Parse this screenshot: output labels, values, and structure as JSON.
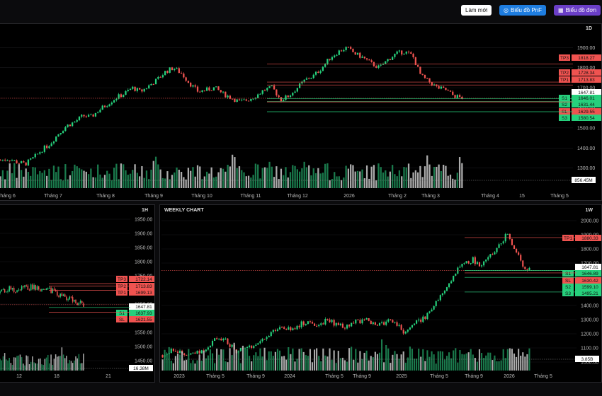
{
  "toolbar": {
    "refresh_label": "Làm mới",
    "pnf_label": "Biểu đồ PnF",
    "single_label": "Biểu đồ đơn",
    "pnf_icon": "target-icon",
    "single_icon": "calendar-icon"
  },
  "colors": {
    "up": "#26d07c",
    "down": "#ef5350",
    "tp": "#ef5350",
    "support": "#26d07c",
    "current": "#ffffff",
    "bg": "#000000"
  },
  "daily": {
    "timeframe": "1D",
    "y_ticks": [
      "1900.00",
      "1800.00",
      "1700.00",
      "1600.00",
      "1500.00",
      "1400.00",
      "1300.00"
    ],
    "x_ticks": [
      "Tháng 6",
      "Tháng 7",
      "Tháng 8",
      "Tháng 9",
      "Tháng 10",
      "Tháng 11",
      "Tháng 12",
      "2026",
      "Tháng 2",
      "Tháng 3",
      "Tháng 4",
      "15",
      "Tháng 5"
    ],
    "levels": [
      {
        "label": "TP3",
        "value": "1818.27",
        "type": "tp"
      },
      {
        "label": "TP2",
        "value": "1728.34",
        "type": "tp"
      },
      {
        "label": "TP1",
        "value": "1713.83",
        "type": "tp"
      },
      {
        "label": "",
        "value": "1647.81",
        "type": "current"
      },
      {
        "label": "S1",
        "value": "1646.01",
        "type": "support"
      },
      {
        "label": "S2",
        "value": "1631.44",
        "type": "support"
      },
      {
        "label": "SL",
        "value": "1629.55",
        "type": "sl"
      },
      {
        "label": "S3",
        "value": "1580.54",
        "type": "support"
      }
    ],
    "volume_label": "856.45M"
  },
  "hourly": {
    "timeframe": "1H",
    "y_ticks": [
      "1950.00",
      "1900.00",
      "1850.00",
      "1800.00",
      "1750.00",
      "1650.00",
      "1600.00",
      "1550.00",
      "1500.00",
      "1450.00"
    ],
    "x_ticks": [
      "12",
      "18",
      "21"
    ],
    "levels": [
      {
        "label": "TP3",
        "value": "1722.14",
        "type": "tp"
      },
      {
        "label": "TP2",
        "value": "1713.83",
        "type": "tp"
      },
      {
        "label": "TP1",
        "value": "1699.13",
        "type": "tp"
      },
      {
        "label": "",
        "value": "1647.81",
        "type": "current"
      },
      {
        "label": "S1",
        "value": "1637.93",
        "type": "support"
      },
      {
        "label": "SL",
        "value": "1621.55",
        "type": "sl"
      }
    ],
    "volume_label": "16.38M"
  },
  "weekly": {
    "title": "WEEKLY CHART",
    "timeframe": "1W",
    "y_ticks": [
      "2000.00",
      "1900.00",
      "1800.00",
      "1700.00",
      "1500.00",
      "1400.00",
      "1300.00",
      "1200.00",
      "1100.00",
      "1000.00"
    ],
    "x_ticks": [
      "2023",
      "Tháng 5",
      "Tháng 9",
      "2024",
      "Tháng 5",
      "Tháng 9",
      "2025",
      "Tháng 5",
      "Tháng 9",
      "2026",
      "Tháng 5"
    ],
    "levels": [
      {
        "label": "TP1",
        "value": "1880.33",
        "type": "tp"
      },
      {
        "label": "",
        "value": "1647.81",
        "type": "current"
      },
      {
        "label": "S1",
        "value": "1646.89",
        "type": "support"
      },
      {
        "label": "SL",
        "value": "1630.42",
        "type": "sl"
      },
      {
        "label": "S2",
        "value": "1599.10",
        "type": "support"
      },
      {
        "label": "S3",
        "value": "1495.21",
        "type": "support"
      }
    ],
    "volume_label": "3.85B"
  },
  "chart_data": [
    {
      "type": "candlestick",
      "timeframe": "1D",
      "x_ticks": [
        "Tháng 6",
        "Tháng 7",
        "Tháng 8",
        "Tháng 9",
        "Tháng 10",
        "Tháng 11",
        "Tháng 12",
        "2026",
        "Tháng 2",
        "Tháng 3",
        "Tháng 4",
        "15",
        "Tháng 5"
      ],
      "ylim": [
        1260,
        1940
      ],
      "path": [
        1340,
        1345,
        1330,
        1320,
        1350,
        1390,
        1420,
        1470,
        1510,
        1530,
        1560,
        1555,
        1590,
        1620,
        1650,
        1670,
        1700,
        1680,
        1710,
        1740,
        1780,
        1800,
        1770,
        1720,
        1680,
        1690,
        1700,
        1670,
        1650,
        1630,
        1640,
        1660,
        1690,
        1700,
        1640,
        1660,
        1700,
        1740,
        1760,
        1800,
        1850,
        1880,
        1900,
        1870,
        1850,
        1820,
        1800,
        1840,
        1870,
        1880,
        1860,
        1760,
        1730,
        1700,
        1690,
        1660,
        1650
      ],
      "levels": {
        "TP3": 1818.27,
        "TP2": 1728.34,
        "TP1": 1713.83,
        "current": 1647.81,
        "S1": 1646.01,
        "S2": 1631.44,
        "SL": 1629.55,
        "S3": 1580.54
      },
      "last_volume": "856.45M"
    },
    {
      "type": "candlestick",
      "timeframe": "1H",
      "x_ticks": [
        "12",
        "18",
        "21"
      ],
      "ylim": [
        1420,
        1970
      ],
      "path": [
        1690,
        1700,
        1705,
        1695,
        1700,
        1710,
        1705,
        1712,
        1708,
        1700,
        1702,
        1698,
        1690,
        1680,
        1675,
        1670,
        1660,
        1655,
        1648
      ],
      "levels": {
        "TP3": 1722.14,
        "TP2": 1713.83,
        "TP1": 1699.13,
        "current": 1647.81,
        "S1": 1637.93,
        "SL": 1621.55
      },
      "last_volume": "16.38M"
    },
    {
      "type": "candlestick",
      "timeframe": "1W",
      "title": "WEEKLY CHART",
      "x_ticks": [
        "2023",
        "Tháng 5",
        "Tháng 9",
        "2024",
        "Tháng 5",
        "Tháng 9",
        "2025",
        "Tháng 5",
        "Tháng 9",
        "2026",
        "Tháng 5"
      ],
      "ylim": [
        950,
        2050
      ],
      "path": [
        1050,
        1060,
        1090,
        1070,
        1060,
        1080,
        1070,
        1065,
        1100,
        1150,
        1180,
        1160,
        1120,
        1080,
        1090,
        1110,
        1120,
        1140,
        1160,
        1210,
        1230,
        1250,
        1240,
        1230,
        1260,
        1280,
        1270,
        1260,
        1280,
        1290,
        1280,
        1270,
        1240,
        1260,
        1280,
        1290,
        1300,
        1280,
        1250,
        1270,
        1300,
        1280,
        1250,
        1200,
        1260,
        1280,
        1300,
        1340,
        1400,
        1450,
        1500,
        1580,
        1650,
        1690,
        1700,
        1730,
        1680,
        1720,
        1760,
        1800,
        1850,
        1900,
        1830,
        1760,
        1680,
        1650
      ],
      "levels": {
        "TP1": 1880.33,
        "current": 1647.81,
        "S1": 1646.89,
        "SL": 1630.42,
        "S2": 1599.1,
        "S3": 1495.21
      },
      "last_volume": "3.85B"
    }
  ]
}
